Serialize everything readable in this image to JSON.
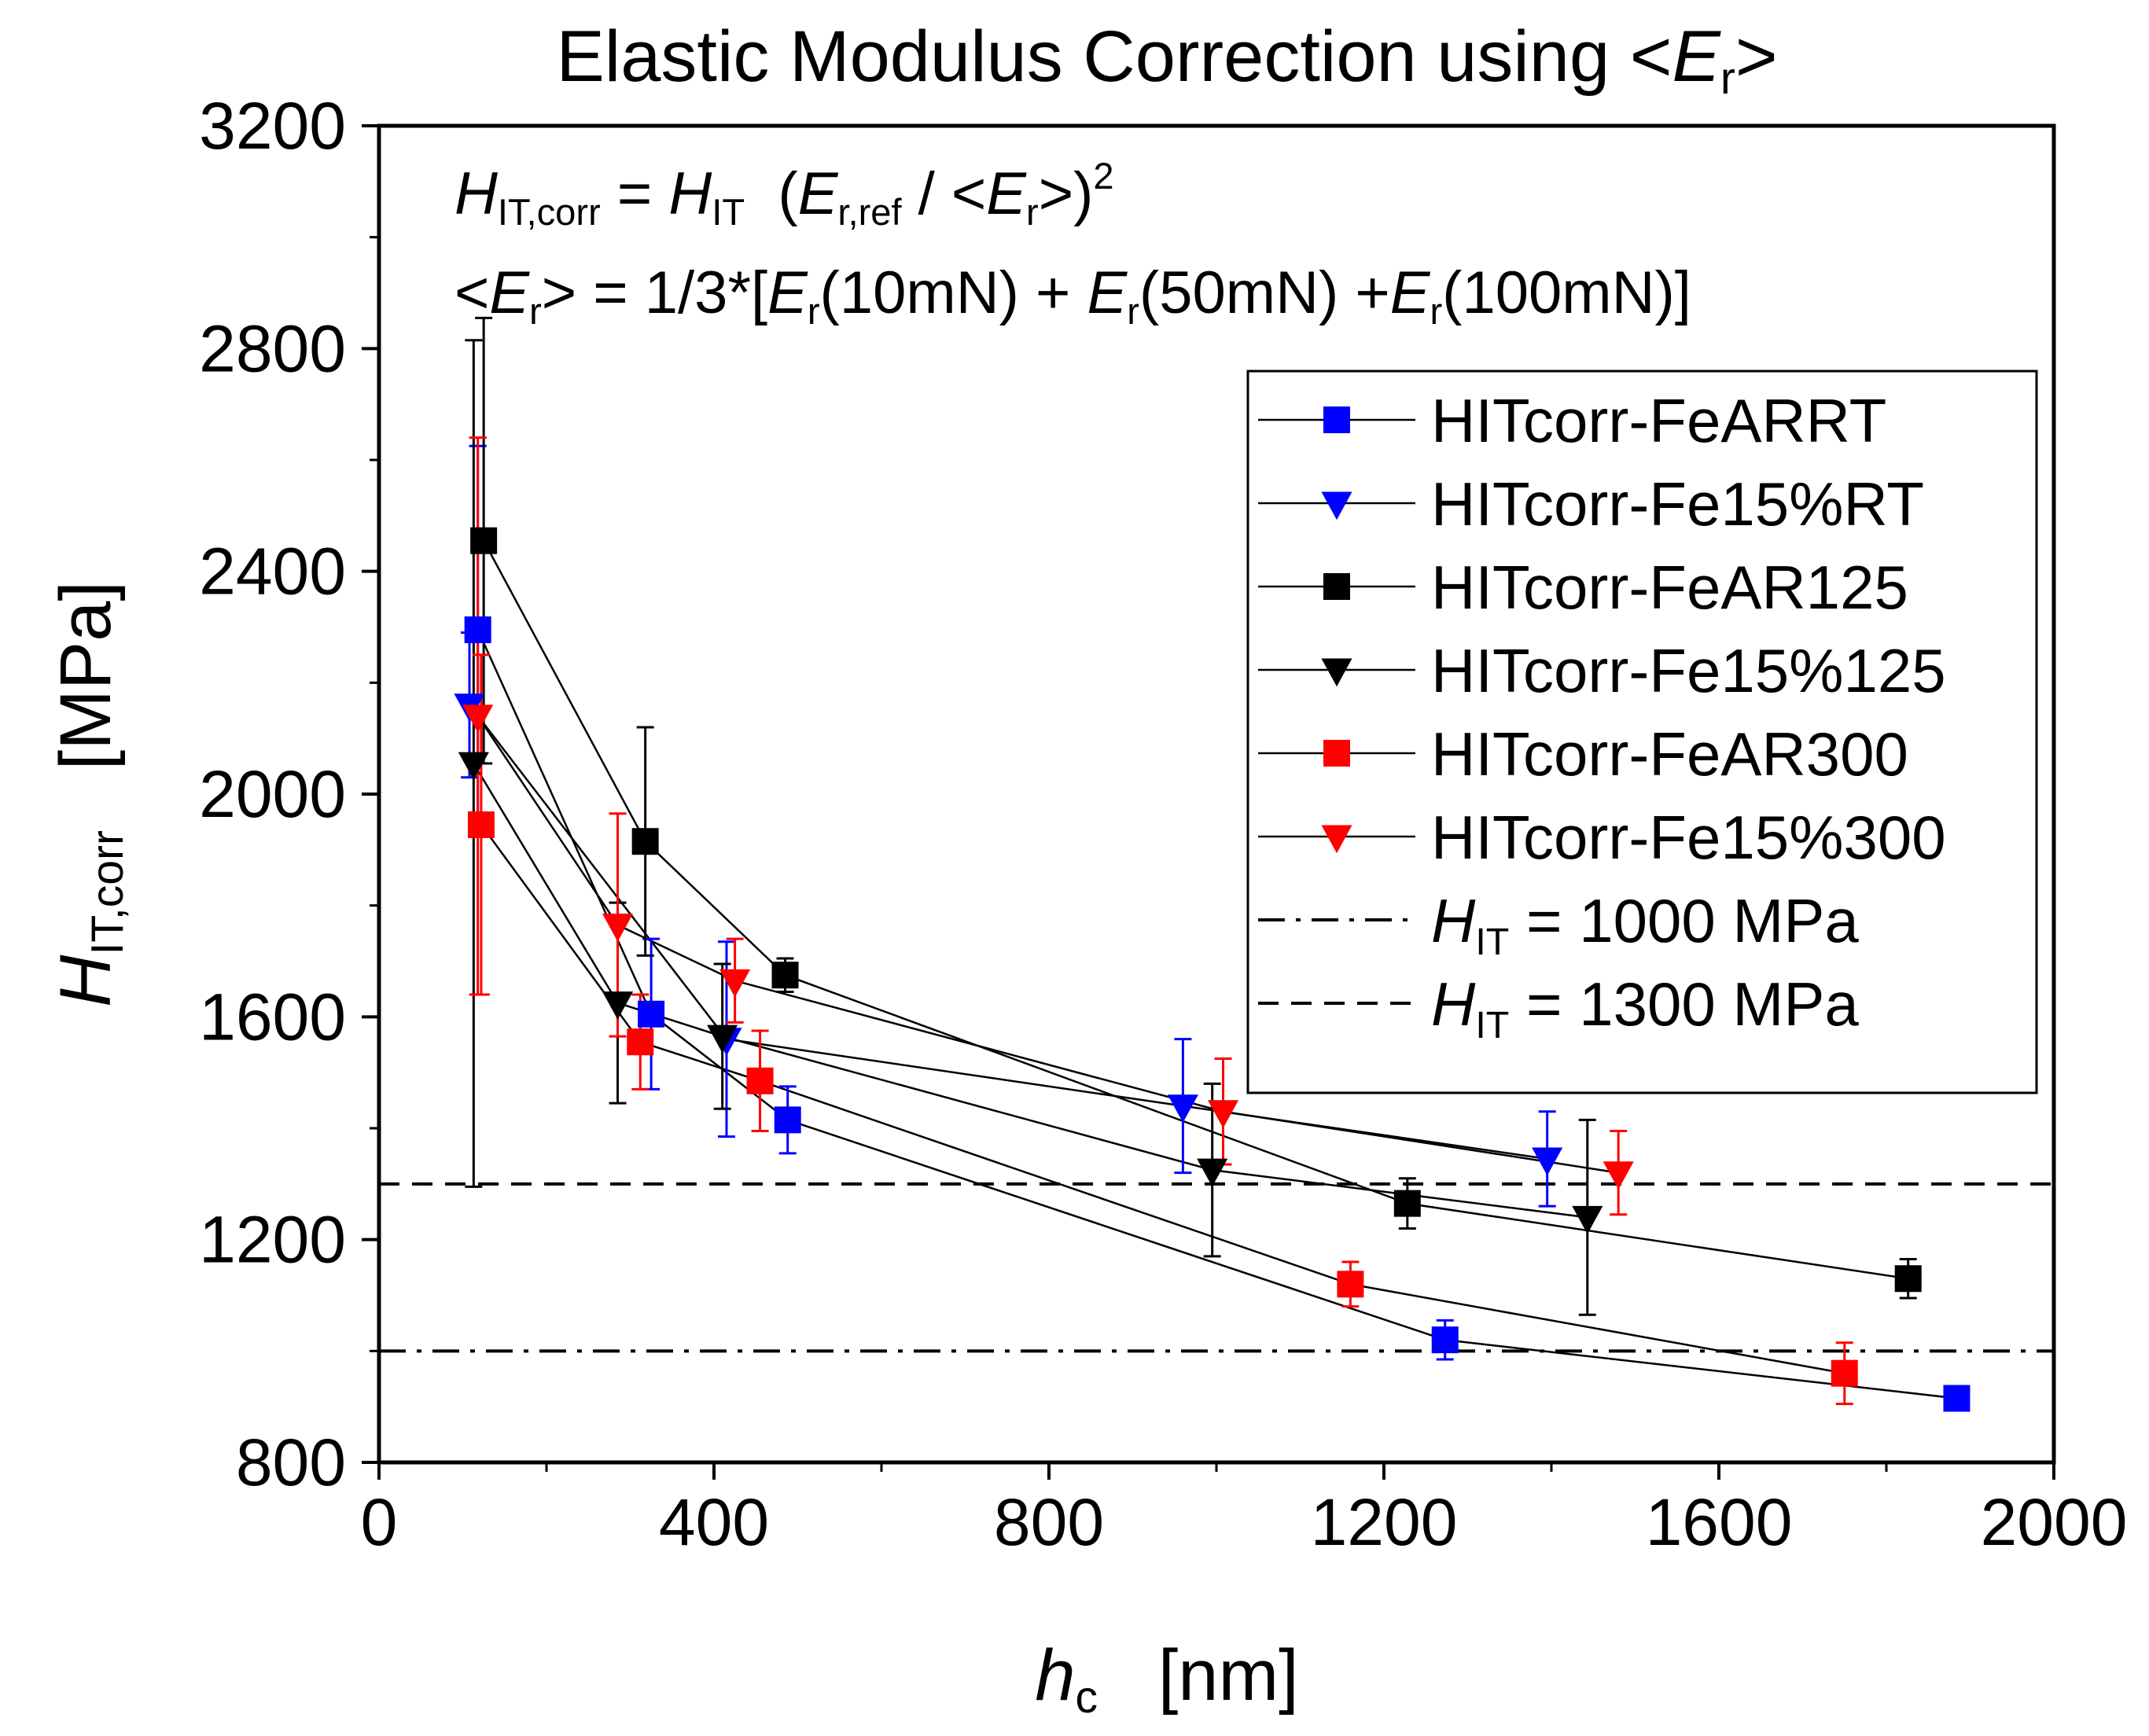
{
  "chart_data": {
    "type": "scatter",
    "title": {
      "main": "Elastic Modulus Correction using <",
      "var": "E",
      "sub": "r",
      "end": ">"
    },
    "xlabel": {
      "var": "h",
      "sub": "c",
      "unit": "[nm]"
    },
    "ylabel": {
      "var": "H",
      "sub": "IT,corr",
      "unit": "[MPa]"
    },
    "xlim": [
      0,
      2000
    ],
    "ylim": [
      800,
      3200
    ],
    "xticks": [
      0,
      400,
      800,
      1200,
      1600,
      2000
    ],
    "yticks": [
      800,
      1200,
      1600,
      2000,
      2400,
      2800,
      3200
    ],
    "grid": false,
    "annotations": {
      "line1": {
        "lhs_var": "H",
        "lhs_sub": "IT,corr",
        "eq": " = ",
        "rhs_var": "H",
        "rhs_sub": "IT",
        "open": "  (",
        "num_var": "E",
        "num_sub": "r,ref",
        "slash": " / <",
        "den_var": "E",
        "den_sub": "r",
        "close": ">)",
        "exp": "2"
      },
      "line2": {
        "open": "<",
        "var1": "E",
        "sub1": "r",
        "mid1": "> = 1/3*[",
        "var2": "E",
        "sub2": "r",
        "mid2": "(10mN) + ",
        "var3": "E",
        "sub3": "r",
        "mid3": "(50mN) +",
        "var4": "E",
        "sub4": "r",
        "end": "(100mN)]"
      }
    },
    "legend_position": "top-right",
    "series": [
      {
        "name": "HITcorr-FeARRT",
        "color": "#0000ff",
        "marker": "square",
        "points": [
          {
            "x": 118,
            "y": 2295,
            "err": 330
          },
          {
            "x": 325,
            "y": 1605,
            "err": 135
          },
          {
            "x": 488,
            "y": 1415,
            "err": 60
          },
          {
            "x": 1273,
            "y": 1020,
            "err": 35
          },
          {
            "x": 1884,
            "y": 915,
            "err": 0
          }
        ]
      },
      {
        "name": "HITcorr-Fe15%RT",
        "color": "#0000ff",
        "marker": "triangle-down",
        "points": [
          {
            "x": 108,
            "y": 2160,
            "err": 130
          },
          {
            "x": 415,
            "y": 1560,
            "err": 175
          },
          {
            "x": 960,
            "y": 1440,
            "err": 120
          },
          {
            "x": 1395,
            "y": 1345,
            "err": 85
          }
        ]
      },
      {
        "name": "HITcorr-FeAR125",
        "color": "#000000",
        "marker": "square",
        "points": [
          {
            "x": 125,
            "y": 2455,
            "err": 400
          },
          {
            "x": 318,
            "y": 1915,
            "err": 205
          },
          {
            "x": 485,
            "y": 1675,
            "err": 30
          },
          {
            "x": 1228,
            "y": 1265,
            "err": 45
          },
          {
            "x": 1826,
            "y": 1130,
            "err": 35
          }
        ]
      },
      {
        "name": "HITcorr-Fe15%125",
        "color": "#000000",
        "marker": "triangle-down",
        "points": [
          {
            "x": 113,
            "y": 2055,
            "err": 760
          },
          {
            "x": 285,
            "y": 1625,
            "err": 180
          },
          {
            "x": 410,
            "y": 1565,
            "err": 130
          },
          {
            "x": 995,
            "y": 1325,
            "err": 155
          },
          {
            "x": 1443,
            "y": 1240,
            "err": 175
          }
        ]
      },
      {
        "name": "HITcorr-FeAR300",
        "color": "#ff0000",
        "marker": "square",
        "points": [
          {
            "x": 122,
            "y": 1945,
            "err": 305
          },
          {
            "x": 312,
            "y": 1555,
            "err": 85
          },
          {
            "x": 455,
            "y": 1485,
            "err": 90
          },
          {
            "x": 1160,
            "y": 1120,
            "err": 40
          },
          {
            "x": 1750,
            "y": 960,
            "err": 55
          }
        ]
      },
      {
        "name": "HITcorr-Fe15%300",
        "color": "#ff0000",
        "marker": "triangle-down",
        "points": [
          {
            "x": 118,
            "y": 2140,
            "err": 500
          },
          {
            "x": 285,
            "y": 1765,
            "err": 200
          },
          {
            "x": 425,
            "y": 1665,
            "err": 75
          },
          {
            "x": 1008,
            "y": 1430,
            "err": 95
          },
          {
            "x": 1480,
            "y": 1320,
            "err": 75
          }
        ]
      }
    ],
    "reference_lines": [
      {
        "name": "H_IT = 1000 MPa",
        "var": "H",
        "sub": "IT",
        "label": " = 1000 MPa",
        "y": 1000,
        "style": "dash-dot"
      },
      {
        "name": "H_IT = 1300 MPa",
        "var": "H",
        "sub": "IT",
        "label": " = 1300 MPa",
        "y": 1300,
        "style": "dash"
      }
    ]
  }
}
